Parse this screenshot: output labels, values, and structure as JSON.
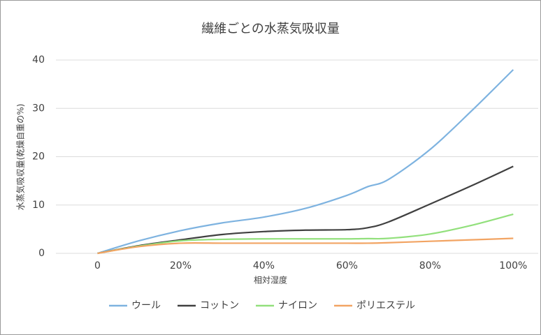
{
  "chart_data": {
    "type": "line",
    "title": "繊維ごとの水蒸気吸収量",
    "x_label": "相対湿度",
    "y_label": "水蒸気吸収量(乾燥自重の%)",
    "x": [
      0,
      10,
      20,
      30,
      40,
      50,
      60,
      65,
      70,
      80,
      90,
      100
    ],
    "series": [
      {
        "name": "ウール",
        "color": "#7eb3e0",
        "values": [
          0,
          2.6,
          4.7,
          6.3,
          7.5,
          9.3,
          12,
          13.8,
          15.3,
          21.5,
          29.5,
          38
        ]
      },
      {
        "name": "コットン",
        "color": "#404040",
        "values": [
          0,
          1.6,
          2.8,
          3.9,
          4.5,
          4.8,
          4.9,
          5.3,
          6.5,
          10.2,
          14,
          18
        ]
      },
      {
        "name": "ナイロン",
        "color": "#92e07c",
        "values": [
          0,
          1.5,
          2.6,
          2.9,
          3,
          3,
          3,
          3.05,
          3.1,
          4,
          5.8,
          8.1
        ]
      },
      {
        "name": "ポリエステル",
        "color": "#f2a463",
        "values": [
          0,
          1.4,
          2.1,
          2.1,
          2.1,
          2.1,
          2.1,
          2.1,
          2.2,
          2.5,
          2.8,
          3.1
        ]
      }
    ],
    "xlim": [
      -10,
      106
    ],
    "ylim": [
      0,
      40
    ],
    "xticks": [
      0,
      {
        "value": 20,
        "label": "20%"
      },
      {
        "value": 40,
        "label": "40%"
      },
      {
        "value": 60,
        "label": "60%"
      },
      {
        "value": 80,
        "label": "80%"
      },
      {
        "value": 100,
        "label": "100%"
      }
    ],
    "yticks": [
      0,
      10,
      20,
      30,
      40
    ],
    "grid": true,
    "legend": "bottom"
  }
}
